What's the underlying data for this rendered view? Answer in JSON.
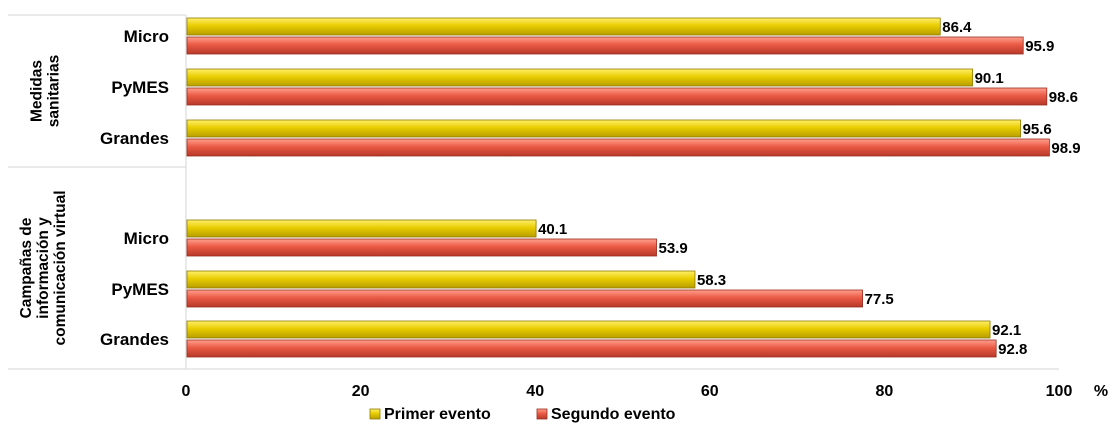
{
  "chart_data": {
    "type": "bar",
    "orientation": "horizontal",
    "groups": [
      {
        "label": "Medidas sanitarias",
        "label_lines": [
          "Medidas",
          "sanitarias"
        ],
        "categories": [
          "Micro",
          "PyMES",
          "Grandes"
        ]
      },
      {
        "label": "Campañas de información y comunicación virtual",
        "label_lines": [
          "Campañas de",
          "información y",
          "comunicación virtual"
        ],
        "categories": [
          "Micro",
          "PyMES",
          "Grandes"
        ]
      }
    ],
    "series": [
      {
        "name": "Primer evento",
        "color": "#e8cd00",
        "values": [
          86.4,
          90.1,
          95.6,
          40.1,
          58.3,
          92.1
        ]
      },
      {
        "name": "Segundo evento",
        "color": "#ea5a44",
        "values": [
          95.9,
          98.6,
          98.9,
          53.9,
          77.5,
          92.8
        ]
      }
    ],
    "x_ticks": [
      "0",
      "20",
      "40",
      "60",
      "80",
      "100"
    ],
    "x_unit": "%",
    "xlim": [
      0,
      100
    ],
    "data_labels": true,
    "legend_position": "bottom",
    "grid": false
  }
}
